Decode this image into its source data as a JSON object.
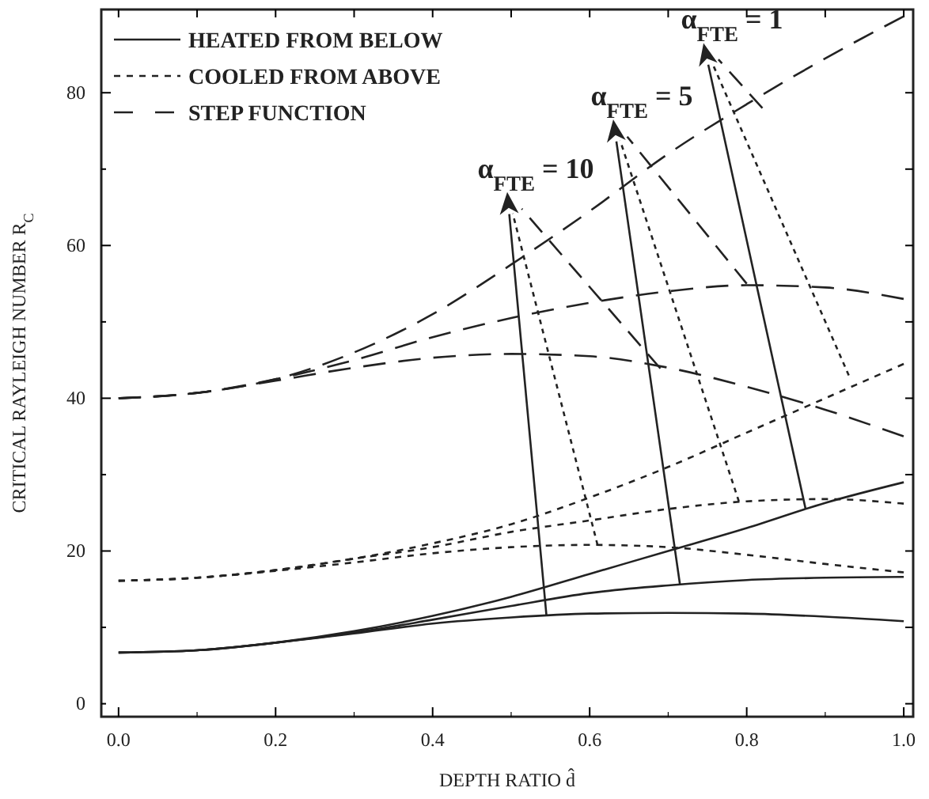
{
  "chart_data": {
    "type": "line",
    "xlabel": "DEPTH RATIO d̂",
    "ylabel": "CRITICAL RAYLEIGH NUMBER R$_{C}$",
    "x": [
      0,
      0.1,
      0.2,
      0.3,
      0.4,
      0.5,
      0.6,
      0.7,
      0.8,
      0.9,
      1.0
    ],
    "xlim": [
      -0.022,
      1.012
    ],
    "ylim": [
      -1.7,
      90.9
    ],
    "xticks": [
      {
        "value": 0,
        "label": "0.0"
      },
      {
        "value": 0.1,
        "label": null
      },
      {
        "value": 0.2,
        "label": "0.2"
      },
      {
        "value": 0.3,
        "label": null
      },
      {
        "value": 0.4,
        "label": "0.4"
      },
      {
        "value": 0.5,
        "label": null
      },
      {
        "value": 0.6,
        "label": "0.6"
      },
      {
        "value": 0.7,
        "label": null
      },
      {
        "value": 0.8,
        "label": "0.8"
      },
      {
        "value": 0.9,
        "label": null
      },
      {
        "value": 1,
        "label": "1.0"
      }
    ],
    "yticks": [
      0,
      {
        "value": 10,
        "label": null
      },
      20,
      {
        "value": 30,
        "label": null
      },
      40,
      {
        "value": 50,
        "label": null
      },
      60,
      {
        "value": 70,
        "label": null
      },
      80
    ],
    "grid": false,
    "legend": "top left",
    "marker": "none",
    "series": [
      {
        "name": "HEATED FROM BELOW",
        "color": "#222222",
        "line_style": "solid",
        "values": [
          6.7,
          7.0,
          8.0,
          9.5,
          11.5,
          14,
          17,
          20,
          23,
          26.3,
          29
        ]
      },
      {
        "color": "#222222",
        "line_style": "solid",
        "values": [
          6.7,
          7.0,
          8.0,
          9.3,
          11,
          12.8,
          14.5,
          15.5,
          16.2,
          16.5,
          16.6
        ]
      },
      {
        "color": "#222222",
        "line_style": "solid",
        "values": [
          6.7,
          7.0,
          8.0,
          9.2,
          10.5,
          11.3,
          11.8,
          11.9,
          11.8,
          11.4,
          10.8
        ]
      },
      {
        "name": "COOLED FROM ABOVE",
        "color": "#222222",
        "line_style": "dotted",
        "values": [
          16.1,
          16.5,
          17.5,
          19,
          21,
          23.5,
          27,
          31,
          35.5,
          40,
          44.5
        ]
      },
      {
        "color": "#222222",
        "line_style": "dotted",
        "values": [
          16.1,
          16.5,
          17.5,
          19,
          20.5,
          22.5,
          24,
          25.5,
          26.5,
          26.8,
          26.2
        ]
      },
      {
        "color": "#222222",
        "line_style": "dotted",
        "values": [
          16.1,
          16.5,
          17.4,
          18.5,
          19.7,
          20.5,
          20.8,
          20.5,
          19.5,
          18.3,
          17.2
        ]
      },
      {
        "name": "STEP FUNCTION",
        "color": "#222222",
        "line_style": "dashed",
        "values": [
          40,
          40.7,
          42.5,
          46,
          51,
          57.5,
          64.5,
          72,
          78.5,
          84.5,
          90
        ]
      },
      {
        "color": "#222222",
        "line_style": "dashed",
        "values": [
          40,
          40.7,
          42.5,
          45,
          48,
          50.5,
          52.5,
          54,
          54.8,
          54.5,
          53
        ]
      },
      {
        "color": "#222222",
        "line_style": "dashed",
        "values": [
          40,
          40.7,
          42.3,
          44,
          45.3,
          45.8,
          45.5,
          44,
          41.5,
          38.5,
          35
        ]
      }
    ],
    "annotations": [
      {
        "text": "α$_{FTE}$ = 10",
        "x": 0.545,
        "y": 11.5
      },
      {
        "text": "α$_{FTE}$ = 5",
        "x": 0.715,
        "y": 15.6
      },
      {
        "text": "α$_{FTE}$ = 1",
        "x": 0.875,
        "y": 25.5
      }
    ]
  }
}
